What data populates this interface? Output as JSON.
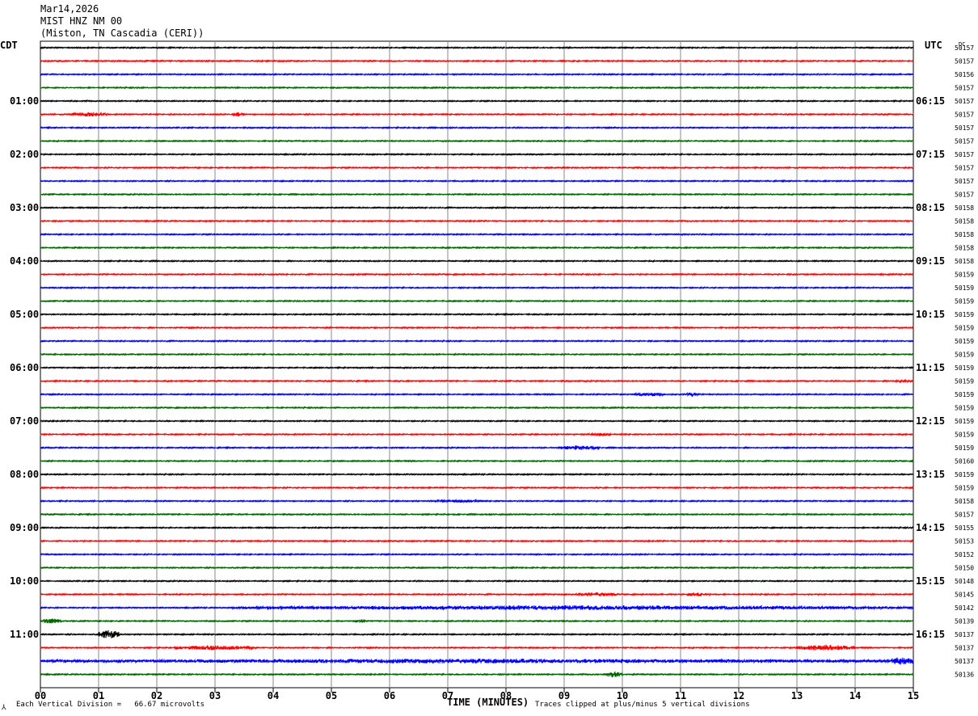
{
  "header": {
    "date": "Mar14,2026",
    "station": "MIST HNZ NM 00",
    "location": "(Miston, TN Cascadia (CERI))"
  },
  "chart_data": {
    "type": "line",
    "title": "MIST HNZ NM 00",
    "left_timezone": "CDT",
    "right_timezone": "UTC",
    "dc_label": "DC",
    "xlabel": "TIME (MINUTES)",
    "x_ticks": [
      "00",
      "01",
      "02",
      "03",
      "04",
      "05",
      "06",
      "07",
      "08",
      "09",
      "10",
      "11",
      "12",
      "13",
      "14",
      "15"
    ],
    "xlim": [
      0,
      15
    ],
    "left_hour_labels": [
      "01:00",
      "02:00",
      "03:00",
      "04:00",
      "05:00",
      "06:00",
      "07:00",
      "08:00",
      "09:00",
      "10:00",
      "11:00"
    ],
    "right_hour_labels": [
      "06:15",
      "07:15",
      "08:15",
      "09:15",
      "10:15",
      "11:15",
      "12:15",
      "13:15",
      "14:15",
      "15:15",
      "16:15"
    ],
    "trace_colors": [
      "#000000",
      "#ff0000",
      "#0000ff",
      "#006400"
    ],
    "dc_offsets": [
      "50157",
      "50157",
      "50156",
      "50157",
      "50157",
      "50157",
      "50157",
      "50157",
      "50157",
      "50157",
      "50157",
      "50157",
      "50158",
      "50158",
      "50158",
      "50158",
      "50158",
      "50159",
      "50159",
      "50159",
      "50159",
      "50159",
      "50159",
      "50159",
      "50159",
      "50159",
      "50159",
      "50159",
      "50159",
      "50159",
      "50159",
      "50160",
      "50159",
      "50159",
      "50158",
      "50157",
      "50155",
      "50153",
      "50152",
      "50150",
      "50148",
      "50145",
      "50142",
      "50139",
      "50137",
      "50137",
      "50137",
      "50136"
    ],
    "activity": [
      {
        "row": 5,
        "x": 0.55,
        "width": 0.6,
        "amp": 3
      },
      {
        "row": 5,
        "x": 3.3,
        "width": 0.2,
        "amp": 3
      },
      {
        "row": 25,
        "x": 14.6,
        "width": 0.5,
        "amp": 2
      },
      {
        "row": 26,
        "x": 10.2,
        "width": 0.5,
        "amp": 3
      },
      {
        "row": 26,
        "x": 11.1,
        "width": 0.2,
        "amp": 3
      },
      {
        "row": 29,
        "x": 9.4,
        "width": 0.4,
        "amp": 2
      },
      {
        "row": 30,
        "x": 8.9,
        "width": 0.7,
        "amp": 3
      },
      {
        "row": 34,
        "x": 6.7,
        "width": 0.9,
        "amp": 2
      },
      {
        "row": 41,
        "x": 9.2,
        "width": 0.7,
        "amp": 3
      },
      {
        "row": 41,
        "x": 11.1,
        "width": 0.4,
        "amp": 3
      },
      {
        "row": 42,
        "x": 3.3,
        "width": 11.7,
        "amp": 3
      },
      {
        "row": 43,
        "x": 0.05,
        "width": 0.3,
        "amp": 4
      },
      {
        "row": 43,
        "x": 5.4,
        "width": 0.2,
        "amp": 3
      },
      {
        "row": 44,
        "x": 1.0,
        "width": 0.35,
        "amp": 6
      },
      {
        "row": 45,
        "x": 2.3,
        "width": 1.4,
        "amp": 3
      },
      {
        "row": 45,
        "x": 13.0,
        "width": 1.0,
        "amp": 4
      },
      {
        "row": 46,
        "x": 0.0,
        "width": 15.0,
        "amp": 3
      },
      {
        "row": 46,
        "x": 14.6,
        "width": 0.4,
        "amp": 6
      },
      {
        "row": 47,
        "x": 9.7,
        "width": 0.3,
        "amp": 4
      }
    ],
    "footer": {
      "scale": "Each Vertical Division =   66.67 microvolts",
      "clip_note": "Traces clipped at plus/minus 5 vertical divisions"
    }
  }
}
